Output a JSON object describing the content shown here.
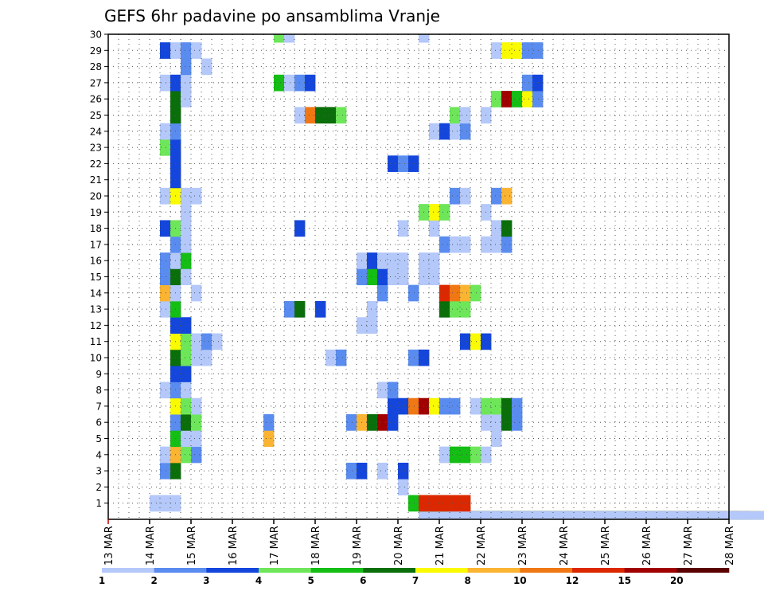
{
  "chart_data": {
    "type": "heatmap",
    "title": "GEFS 6hr padavine po ansamblima Vranje",
    "xlabel": "",
    "ylabel": "",
    "x_tick_labels": [
      "13 MAR",
      "14 MAR",
      "15 MAR",
      "16 MAR",
      "17 MAR",
      "18 MAR",
      "19 MAR",
      "20 MAR",
      "21 MAR",
      "22 MAR",
      "23 MAR",
      "24 MAR",
      "25 MAR",
      "26 MAR",
      "27 MAR",
      "28 MAR"
    ],
    "y_tick_labels": [
      "1",
      "2",
      "3",
      "4",
      "5",
      "6",
      "7",
      "8",
      "9",
      "10",
      "11",
      "12",
      "13",
      "14",
      "15",
      "16",
      "17",
      "18",
      "19",
      "20",
      "21",
      "22",
      "23",
      "24",
      "25",
      "26",
      "27",
      "28",
      "29",
      "30"
    ],
    "x_range": [
      "13 MAR 00Z",
      "28 MAR 00Z"
    ],
    "time_step_hours": 6,
    "y_range": [
      0,
      30
    ],
    "grid": true,
    "colorbar": {
      "placement": "bottom",
      "labels": [
        "1",
        "2",
        "3",
        "4",
        "5",
        "6",
        "7",
        "8",
        "10",
        "12",
        "15",
        "20"
      ],
      "colors": [
        "#b4c8fa",
        "#5a8cf0",
        "#1446dc",
        "#6ee65a",
        "#14be14",
        "#0a6e0a",
        "#fafa00",
        "#fab432",
        "#f07814",
        "#dc2800",
        "#a00000",
        "#5a0000"
      ]
    },
    "cells": [
      [
        0,
        30,
        5,
        4
      ],
      [
        0,
        30,
        6,
        1
      ],
      [
        0,
        30,
        24,
        5
      ],
      [
        0,
        30,
        30,
        1
      ],
      [
        0,
        30,
        31,
        2
      ],
      [
        0,
        30,
        32,
        3
      ],
      [
        0,
        30,
        33,
        10
      ],
      [
        0,
        30,
        34,
        6
      ],
      [
        0,
        30,
        35,
        1
      ],
      [
        1,
        4,
        1
      ],
      [
        1,
        5,
        1
      ],
      [
        1,
        6,
        1
      ],
      [
        1,
        29,
        4,
        5
      ],
      [
        1,
        30,
        5,
        10
      ],
      [
        2,
        28,
        1
      ],
      [
        3,
        5,
        2
      ],
      [
        3,
        6,
        6
      ],
      [
        3,
        23,
        2
      ],
      [
        3,
        24,
        3
      ],
      [
        3,
        26,
        1
      ],
      [
        3,
        28,
        3
      ],
      [
        4,
        5,
        1
      ],
      [
        4,
        6,
        8
      ],
      [
        4,
        7,
        4
      ],
      [
        4,
        8,
        2
      ],
      [
        4,
        32,
        1
      ],
      [
        4,
        33,
        5
      ],
      [
        4,
        34,
        5
      ],
      [
        4,
        35,
        4
      ],
      [
        4,
        36,
        1
      ],
      [
        5,
        6,
        5
      ],
      [
        5,
        7,
        1
      ],
      [
        5,
        8,
        1
      ],
      [
        5,
        15,
        8
      ],
      [
        5,
        37,
        1
      ],
      [
        6,
        6,
        2
      ],
      [
        6,
        7,
        6
      ],
      [
        6,
        8,
        4
      ],
      [
        6,
        15,
        2
      ],
      [
        6,
        23,
        2
      ],
      [
        6,
        24,
        8
      ],
      [
        6,
        25,
        6
      ],
      [
        6,
        26,
        11
      ],
      [
        6,
        27,
        3
      ],
      [
        6,
        36,
        1
      ],
      [
        6,
        37,
        1
      ],
      [
        6,
        38,
        6
      ],
      [
        6,
        39,
        2
      ],
      [
        7,
        6,
        7
      ],
      [
        7,
        7,
        4
      ],
      [
        7,
        8,
        1
      ],
      [
        7,
        27,
        3
      ],
      [
        7,
        28,
        3
      ],
      [
        7,
        29,
        9
      ],
      [
        7,
        30,
        11
      ],
      [
        7,
        31,
        7
      ],
      [
        7,
        32,
        2
      ],
      [
        7,
        33,
        2
      ],
      [
        7,
        35,
        1
      ],
      [
        7,
        36,
        4
      ],
      [
        7,
        37,
        4
      ],
      [
        7,
        38,
        6
      ],
      [
        7,
        39,
        2
      ],
      [
        8,
        5,
        1
      ],
      [
        8,
        6,
        2
      ],
      [
        8,
        7,
        1
      ],
      [
        8,
        26,
        1
      ],
      [
        8,
        27,
        2
      ],
      [
        9,
        6,
        3
      ],
      [
        9,
        7,
        3
      ],
      [
        10,
        6,
        6
      ],
      [
        10,
        7,
        4
      ],
      [
        10,
        8,
        1
      ],
      [
        10,
        9,
        1
      ],
      [
        10,
        21,
        1
      ],
      [
        10,
        22,
        2
      ],
      [
        10,
        29,
        2
      ],
      [
        10,
        30,
        3
      ],
      [
        11,
        6,
        7
      ],
      [
        11,
        7,
        4
      ],
      [
        11,
        8,
        1
      ],
      [
        11,
        9,
        2
      ],
      [
        11,
        10,
        1
      ],
      [
        11,
        34,
        3
      ],
      [
        11,
        35,
        7
      ],
      [
        11,
        36,
        3
      ],
      [
        12,
        6,
        3
      ],
      [
        12,
        7,
        3
      ],
      [
        12,
        24,
        1
      ],
      [
        12,
        25,
        1
      ],
      [
        13,
        5,
        1
      ],
      [
        13,
        6,
        5
      ],
      [
        13,
        17,
        2
      ],
      [
        13,
        18,
        6
      ],
      [
        13,
        20,
        3
      ],
      [
        13,
        25,
        1
      ],
      [
        13,
        32,
        6
      ],
      [
        13,
        33,
        4
      ],
      [
        13,
        34,
        4
      ],
      [
        14,
        5,
        8
      ],
      [
        14,
        6,
        1
      ],
      [
        14,
        8,
        1
      ],
      [
        14,
        26,
        2
      ],
      [
        14,
        29,
        2
      ],
      [
        14,
        32,
        10
      ],
      [
        14,
        33,
        9
      ],
      [
        14,
        34,
        8
      ],
      [
        14,
        35,
        4
      ],
      [
        15,
        5,
        2
      ],
      [
        15,
        6,
        6
      ],
      [
        15,
        7,
        1
      ],
      [
        15,
        24,
        2
      ],
      [
        15,
        25,
        5
      ],
      [
        15,
        26,
        3
      ],
      [
        15,
        27,
        1
      ],
      [
        15,
        28,
        1
      ],
      [
        15,
        30,
        1
      ],
      [
        15,
        31,
        1
      ],
      [
        16,
        5,
        2
      ],
      [
        16,
        6,
        1
      ],
      [
        16,
        7,
        5
      ],
      [
        16,
        24,
        1
      ],
      [
        16,
        25,
        3
      ],
      [
        16,
        26,
        1
      ],
      [
        16,
        27,
        1
      ],
      [
        16,
        28,
        1
      ],
      [
        16,
        30,
        1
      ],
      [
        16,
        31,
        1
      ],
      [
        17,
        6,
        2
      ],
      [
        17,
        7,
        1
      ],
      [
        17,
        32,
        2
      ],
      [
        17,
        33,
        1
      ],
      [
        17,
        34,
        1
      ],
      [
        17,
        36,
        1
      ],
      [
        17,
        37,
        1
      ],
      [
        17,
        38,
        2
      ],
      [
        18,
        5,
        3
      ],
      [
        18,
        6,
        4
      ],
      [
        18,
        7,
        1
      ],
      [
        18,
        18,
        3
      ],
      [
        18,
        28,
        1
      ],
      [
        18,
        31,
        1
      ],
      [
        18,
        37,
        1
      ],
      [
        18,
        38,
        6
      ],
      [
        19,
        7,
        1
      ],
      [
        19,
        30,
        4
      ],
      [
        19,
        31,
        7
      ],
      [
        19,
        32,
        4
      ],
      [
        19,
        36,
        1
      ],
      [
        20,
        5,
        1
      ],
      [
        20,
        6,
        7
      ],
      [
        20,
        7,
        1
      ],
      [
        20,
        8,
        1
      ],
      [
        20,
        33,
        2
      ],
      [
        20,
        34,
        1
      ],
      [
        20,
        37,
        2
      ],
      [
        20,
        38,
        8
      ],
      [
        21,
        6,
        3
      ],
      [
        22,
        6,
        3
      ],
      [
        22,
        27,
        3
      ],
      [
        22,
        28,
        2
      ],
      [
        22,
        29,
        3
      ],
      [
        23,
        5,
        4
      ],
      [
        23,
        6,
        3
      ],
      [
        24,
        5,
        1
      ],
      [
        24,
        6,
        2
      ],
      [
        24,
        31,
        1
      ],
      [
        24,
        32,
        3
      ],
      [
        24,
        33,
        1
      ],
      [
        24,
        34,
        2
      ],
      [
        25,
        6,
        6
      ],
      [
        25,
        18,
        1
      ],
      [
        25,
        19,
        9
      ],
      [
        25,
        20,
        6
      ],
      [
        25,
        21,
        6
      ],
      [
        25,
        22,
        4
      ],
      [
        25,
        33,
        4
      ],
      [
        25,
        34,
        1
      ],
      [
        25,
        36,
        1
      ],
      [
        26,
        6,
        6
      ],
      [
        26,
        7,
        1
      ],
      [
        26,
        37,
        4
      ],
      [
        26,
        38,
        11
      ],
      [
        26,
        39,
        5
      ],
      [
        26,
        40,
        7
      ],
      [
        26,
        41,
        2
      ],
      [
        27,
        5,
        1
      ],
      [
        27,
        6,
        3
      ],
      [
        27,
        7,
        1
      ],
      [
        27,
        16,
        5
      ],
      [
        27,
        17,
        1
      ],
      [
        27,
        18,
        2
      ],
      [
        27,
        19,
        3
      ],
      [
        27,
        40,
        2
      ],
      [
        27,
        41,
        3
      ],
      [
        28,
        7,
        2
      ],
      [
        28,
        9,
        1
      ],
      [
        29,
        5,
        3
      ],
      [
        29,
        6,
        1
      ],
      [
        29,
        7,
        2
      ],
      [
        29,
        8,
        1
      ],
      [
        29,
        37,
        1
      ],
      [
        29,
        38,
        7
      ],
      [
        29,
        39,
        7
      ],
      [
        29,
        40,
        2
      ],
      [
        29,
        41,
        2
      ],
      [
        30,
        16,
        4
      ],
      [
        30,
        17,
        1
      ],
      [
        30,
        30,
        1
      ]
    ]
  }
}
